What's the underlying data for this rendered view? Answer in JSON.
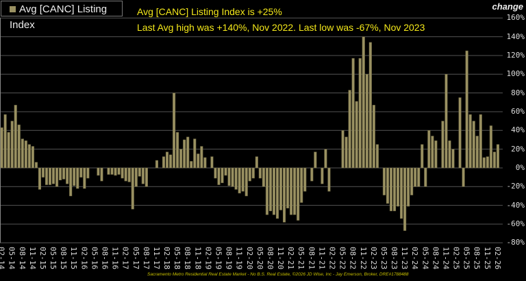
{
  "chart_data": {
    "type": "bar",
    "legend": "Avg [CANC] Listing Index",
    "legend_placement": "top-left",
    "ylabel": "change",
    "ylim": [
      -80,
      160
    ],
    "yticks": [
      "160%",
      "140%",
      "120%",
      "100%",
      "80%",
      "60%",
      "40%",
      "20%",
      "0%",
      "-20%",
      "-40%",
      "-60%",
      "-80%"
    ],
    "grid": true,
    "bar_color": "#9a9162",
    "x_start": "02-14",
    "x_end": "02-26",
    "xtick_labels": [
      "02-14",
      "05-14",
      "08-14",
      "11-14",
      "02-15",
      "05-15",
      "08-15",
      "11-15",
      "02-16",
      "05-16",
      "08-16",
      "11-16",
      "02-17",
      "05-17",
      "08-17",
      "11-17",
      "02-18",
      "05-18",
      "08-18",
      "11-18",
      "02-19",
      "05-19",
      "08-19",
      "11-19",
      "02-20",
      "05-20",
      "08-20",
      "11-20",
      "02-21",
      "05-21",
      "08-21",
      "11-21",
      "02-22",
      "05-22",
      "08-22",
      "11-22",
      "02-23",
      "05-23",
      "08-23",
      "11-23",
      "02-24",
      "05-24",
      "08-24",
      "11-24",
      "02-25",
      "05-25",
      "08-25",
      "11-25",
      "02-26"
    ],
    "values": [
      43,
      57,
      38,
      50,
      67,
      46,
      31,
      29,
      25,
      23,
      6,
      -23,
      -10,
      -18,
      -18,
      -17,
      -20,
      -13,
      -12,
      -17,
      -30,
      -19,
      -22,
      -10,
      -22,
      -11,
      null,
      null,
      -8,
      -14,
      null,
      -7,
      -7,
      -8,
      -7,
      -11,
      -14,
      -15,
      -44,
      -20,
      -9,
      -17,
      -20,
      null,
      null,
      8,
      null,
      12,
      17,
      14,
      80,
      38,
      20,
      30,
      33,
      7,
      31,
      15,
      23,
      11,
      null,
      12,
      -11,
      -18,
      -16,
      -8,
      -19,
      -20,
      -23,
      -27,
      -25,
      -30,
      -14,
      -11,
      12,
      -11,
      -20,
      -50,
      -46,
      -50,
      -54,
      -45,
      -58,
      -43,
      -50,
      -50,
      -56,
      -37,
      -25,
      null,
      -14,
      17,
      null,
      -17,
      20,
      -25,
      null,
      null,
      null,
      40,
      33,
      83,
      117,
      71,
      117,
      140,
      100,
      134,
      67,
      25,
      null,
      -29,
      -38,
      -46,
      -46,
      -41,
      -54,
      -67,
      -41,
      -29,
      -20,
      -20,
      25,
      -20,
      40,
      34,
      29,
      null,
      50,
      100,
      29,
      20,
      null,
      75,
      -20,
      125,
      57,
      50,
      34,
      57,
      11,
      12,
      45,
      17,
      25
    ]
  },
  "annotations": {
    "line1": "Avg [CANC] Listing Index is +25%",
    "line2": "Last Avg high was +140%, Nov 2022. Last low was -67%, Nov 2023"
  },
  "footer": "Sacramento Metro Residential Real Estate Market - No B.S. Real Estate, ©2026 JD Wise, Inc - Jay Emerson, Broker, DRE#1788488",
  "colors": {
    "annotation": "#f4e81a",
    "grid": "#555555",
    "background": "#000000"
  }
}
